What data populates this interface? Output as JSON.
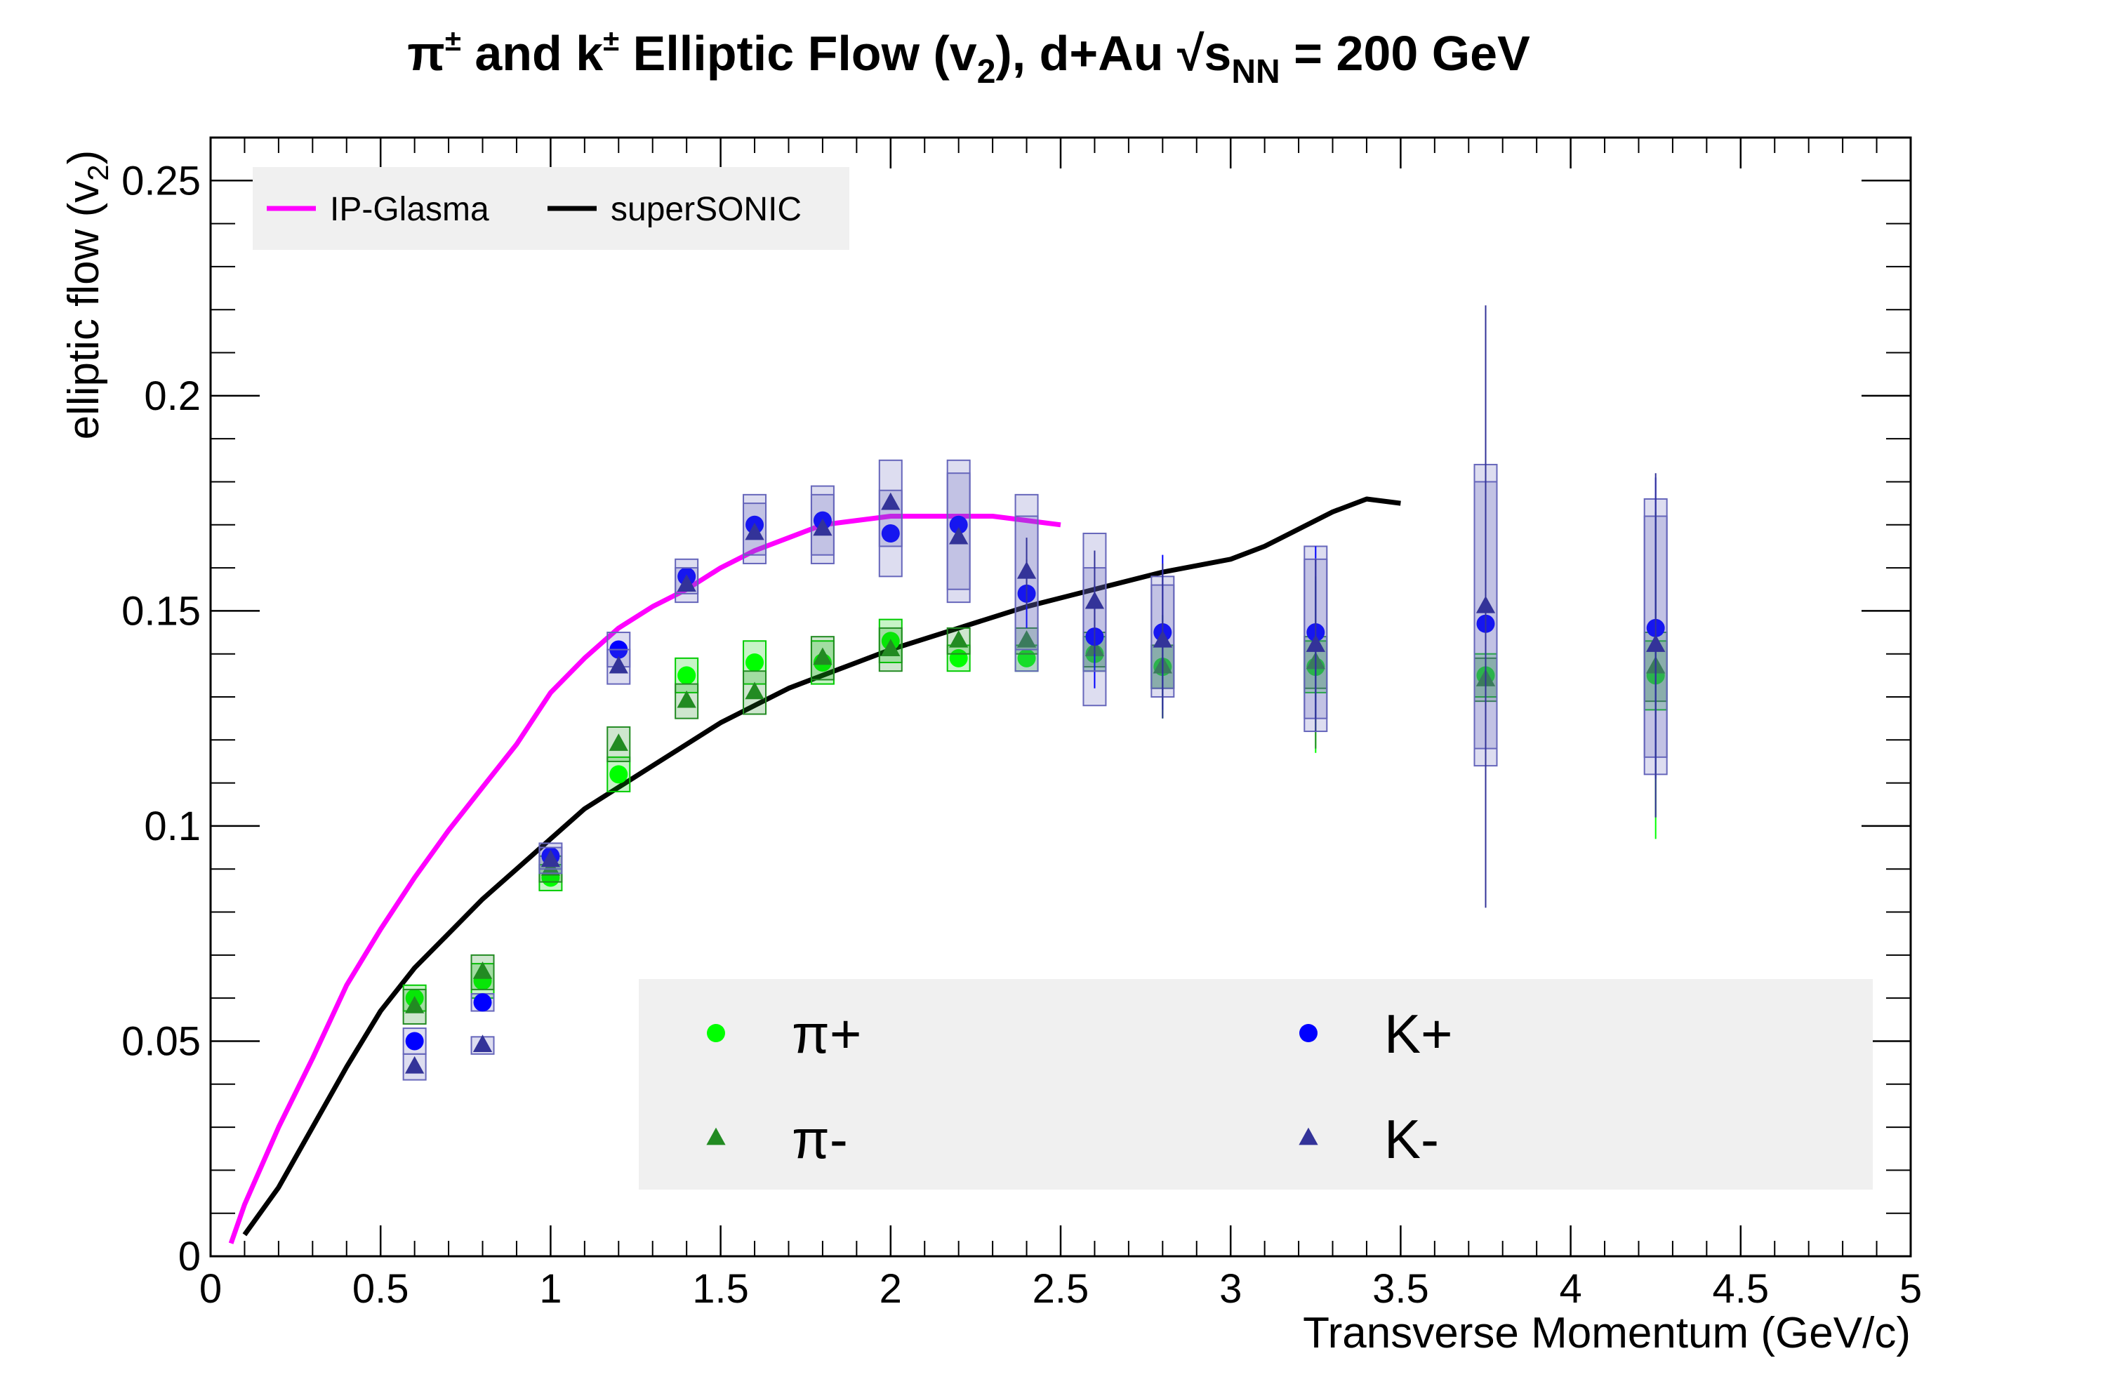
{
  "chart_data": {
    "type": "scatter",
    "title": "π± and k± Elliptic Flow (v2), d+Au   √sNN = 200 GeV",
    "xlabel": "Transverse Momentum (GeV/c)",
    "ylabel": "elliptic flow (v2)",
    "xlim": [
      0,
      5
    ],
    "ylim": [
      0,
      0.26
    ],
    "x_ticks": [
      "0",
      "0.5",
      "1",
      "1.5",
      "2",
      "2.5",
      "3",
      "3.5",
      "4",
      "4.5",
      "5"
    ],
    "y_ticks": [
      "0",
      "0.05",
      "0.1",
      "0.15",
      "0.2",
      "0.25"
    ],
    "grid": false,
    "curves": [
      {
        "name": "IP-Glasma",
        "color": "#ff00ff",
        "x": [
          0.06,
          0.1,
          0.2,
          0.3,
          0.4,
          0.5,
          0.6,
          0.7,
          0.8,
          0.9,
          1.0,
          1.1,
          1.2,
          1.3,
          1.4,
          1.5,
          1.6,
          1.7,
          1.8,
          1.9,
          2.0,
          2.1,
          2.2,
          2.3,
          2.4,
          2.5
        ],
        "y": [
          0.003,
          0.012,
          0.03,
          0.046,
          0.063,
          0.076,
          0.088,
          0.099,
          0.109,
          0.119,
          0.131,
          0.139,
          0.146,
          0.151,
          0.155,
          0.16,
          0.164,
          0.167,
          0.17,
          0.171,
          0.172,
          0.172,
          0.172,
          0.172,
          0.171,
          0.17
        ]
      },
      {
        "name": "superSONIC",
        "color": "#000000",
        "x": [
          0.1,
          0.2,
          0.3,
          0.4,
          0.5,
          0.6,
          0.7,
          0.8,
          0.9,
          1.0,
          1.1,
          1.2,
          1.3,
          1.4,
          1.5,
          1.6,
          1.7,
          1.8,
          1.9,
          2.0,
          2.2,
          2.4,
          2.6,
          2.8,
          3.0,
          3.1,
          3.2,
          3.3,
          3.4,
          3.5
        ],
        "y": [
          0.005,
          0.016,
          0.03,
          0.044,
          0.057,
          0.067,
          0.075,
          0.083,
          0.09,
          0.097,
          0.104,
          0.109,
          0.114,
          0.119,
          0.124,
          0.128,
          0.132,
          0.135,
          0.138,
          0.141,
          0.146,
          0.151,
          0.155,
          0.159,
          0.162,
          0.165,
          0.169,
          0.173,
          0.176,
          0.175
        ]
      }
    ],
    "series": [
      {
        "name": "π+",
        "marker": "circle",
        "color": "#00ff00",
        "box_color": "#00cc00",
        "x": [
          0.6,
          0.8,
          1.0,
          1.2,
          1.4,
          1.6,
          1.8,
          2.0,
          2.2,
          2.4,
          2.6,
          2.8,
          3.25,
          3.75,
          4.25
        ],
        "y": [
          0.06,
          0.064,
          0.088,
          0.112,
          0.135,
          0.138,
          0.138,
          0.143,
          0.139,
          0.139,
          0.14,
          0.137,
          0.137,
          0.135,
          0.135
        ],
        "err": [
          0,
          0,
          0,
          0,
          0,
          0,
          0,
          0,
          0,
          0,
          0.004,
          0.012,
          0.02,
          0.034,
          0.038
        ],
        "sys": [
          0.003,
          0.004,
          0.003,
          0.004,
          0.004,
          0.005,
          0.005,
          0.005,
          0.003,
          0.003,
          0.004,
          0.005,
          0.006,
          0.005,
          0.008
        ]
      },
      {
        "name": "π-",
        "marker": "triangle",
        "color": "#228b22",
        "box_color": "#228b22",
        "x": [
          0.6,
          0.8,
          1.0,
          1.2,
          1.4,
          1.6,
          1.8,
          2.0,
          2.2,
          2.4,
          2.6,
          2.8,
          3.25,
          3.75,
          4.25
        ],
        "y": [
          0.058,
          0.066,
          0.09,
          0.119,
          0.129,
          0.131,
          0.139,
          0.141,
          0.143,
          0.143,
          0.141,
          0.137,
          0.138,
          0.134,
          0.137
        ],
        "err": [
          0,
          0,
          0,
          0,
          0,
          0,
          0,
          0,
          0,
          0,
          0.004,
          0.012,
          0.02,
          0.03,
          0.035
        ],
        "sys": [
          0.004,
          0.004,
          0.003,
          0.004,
          0.004,
          0.005,
          0.005,
          0.005,
          0.003,
          0.003,
          0.004,
          0.005,
          0.006,
          0.005,
          0.008
        ]
      },
      {
        "name": "K+",
        "marker": "circle",
        "color": "#0000ff",
        "box_color": "#6666bb",
        "x": [
          0.6,
          0.8,
          1.0,
          1.2,
          1.4,
          1.6,
          1.8,
          2.0,
          2.2,
          2.4,
          2.6,
          2.8,
          3.25,
          3.75,
          4.25
        ],
        "y": [
          0.05,
          0.059,
          0.093,
          0.141,
          0.158,
          0.17,
          0.171,
          0.168,
          0.17,
          0.154,
          0.144,
          0.145,
          0.145,
          0.147,
          0.146
        ],
        "err": [
          0,
          0,
          0,
          0,
          0,
          0,
          0,
          0,
          0,
          0.008,
          0.012,
          0.018,
          0.02,
          0.065,
          0.035
        ],
        "sys": [
          0.003,
          0.002,
          0.003,
          0.004,
          0.004,
          0.007,
          0.008,
          0.01,
          0.015,
          0.018,
          0.016,
          0.013,
          0.02,
          0.033,
          0.03
        ]
      },
      {
        "name": "K-",
        "marker": "triangle",
        "color": "#333399",
        "box_color": "#6666bb",
        "x": [
          0.6,
          0.8,
          1.0,
          1.2,
          1.4,
          1.6,
          1.8,
          2.0,
          2.2,
          2.4,
          2.6,
          2.8,
          3.25,
          3.75,
          4.25
        ],
        "y": [
          0.044,
          0.049,
          0.092,
          0.137,
          0.156,
          0.168,
          0.169,
          0.175,
          0.167,
          0.159,
          0.152,
          0.143,
          0.142,
          0.151,
          0.142
        ],
        "err": [
          0,
          0,
          0,
          0,
          0,
          0,
          0,
          0,
          0,
          0.008,
          0.012,
          0.018,
          0.02,
          0.07,
          0.04
        ],
        "sys": [
          0.003,
          0.002,
          0.003,
          0.004,
          0.004,
          0.007,
          0.008,
          0.01,
          0.015,
          0.018,
          0.016,
          0.013,
          0.02,
          0.033,
          0.03
        ]
      }
    ],
    "legend_curves_placement": "top-left",
    "legend_markers_placement": "bottom-right"
  },
  "title": {
    "main_a": "π",
    "sup_a": "±",
    "main_b": " and k",
    "sup_b": "±",
    "main_c": " Elliptic Flow (v",
    "sub_c": "2",
    "main_d": "), d+Au   √s",
    "sub_d": "NN",
    "main_e": " = 200 GeV"
  },
  "ylabel": {
    "text": "elliptic flow (v",
    "sub": "2",
    "close": ")"
  },
  "xlabel": {
    "text": "Transverse Momentum (GeV/c)"
  }
}
